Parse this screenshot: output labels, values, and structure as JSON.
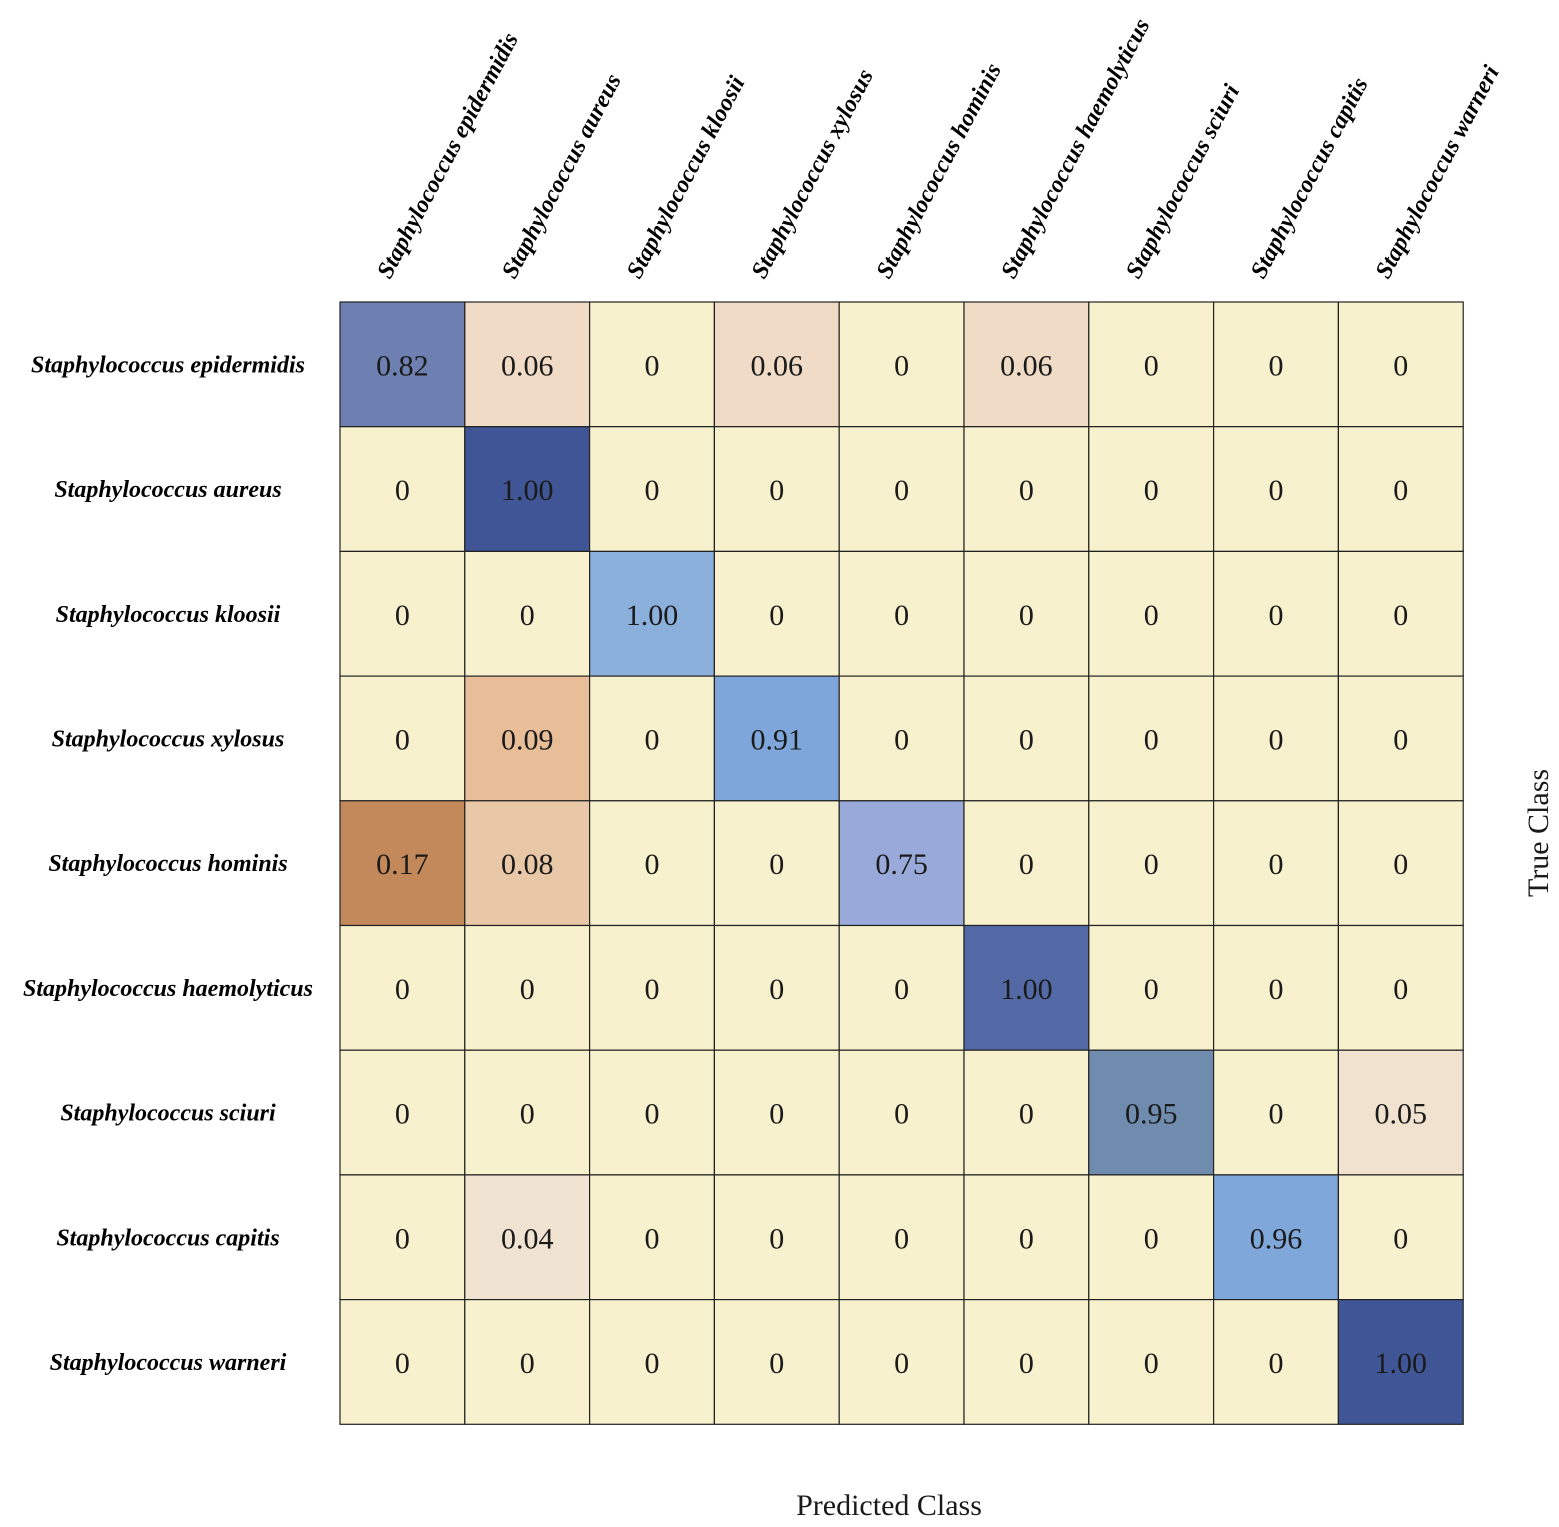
{
  "chart_data": {
    "type": "heatmap",
    "title": "",
    "xlabel": "Predicted Class",
    "ylabel": "True Class",
    "x_categories": [
      "Staphylococcus epidermidis",
      "Staphylococcus aureus",
      "Staphylococcus kloosii",
      "Staphylococcus xylosus",
      "Staphylococcus hominis",
      "Staphylococcus haemolyticus",
      "Staphylococcus sciuri",
      "Staphylococcus capitis",
      "Staphylococcus warneri"
    ],
    "y_categories": [
      "Staphylococcus epidermidis",
      "Staphylococcus aureus",
      "Staphylococcus kloosii",
      "Staphylococcus xylosus",
      "Staphylococcus hominis",
      "Staphylococcus haemolyticus",
      "Staphylococcus sciuri",
      "Staphylococcus capitis",
      "Staphylococcus warneri"
    ],
    "values": [
      [
        "0.82",
        "0.06",
        "0",
        "0.06",
        "0",
        "0.06",
        "0",
        "0",
        "0"
      ],
      [
        "0",
        "1.00",
        "0",
        "0",
        "0",
        "0",
        "0",
        "0",
        "0"
      ],
      [
        "0",
        "0",
        "1.00",
        "0",
        "0",
        "0",
        "0",
        "0",
        "0"
      ],
      [
        "0",
        "0.09",
        "0",
        "0.91",
        "0",
        "0",
        "0",
        "0",
        "0"
      ],
      [
        "0.17",
        "0.08",
        "0",
        "0",
        "0.75",
        "0",
        "0",
        "0",
        "0"
      ],
      [
        "0",
        "0",
        "0",
        "0",
        "0",
        "1.00",
        "0",
        "0",
        "0"
      ],
      [
        "0",
        "0",
        "0",
        "0",
        "0",
        "0",
        "0.95",
        "0",
        "0.05"
      ],
      [
        "0",
        "0.04",
        "0",
        "0",
        "0",
        "0",
        "0",
        "0.96",
        "0"
      ],
      [
        "0",
        "0",
        "0",
        "0",
        "0",
        "0",
        "0",
        "0",
        "1.00"
      ]
    ],
    "colors": {
      "background_cell": "#F8F1CE",
      "grid_line": "#222222",
      "cells": [
        [
          "#6D80B1",
          "#EFDBC6",
          "#F8F1CE",
          "#EFDBC6",
          "#F8F1CE",
          "#EFDBC6",
          "#F8F1CE",
          "#F8F1CE",
          "#F8F1CE"
        ],
        [
          "#F8F1CE",
          "#3F5595",
          "#F8F1CE",
          "#F8F1CE",
          "#F8F1CE",
          "#F8F1CE",
          "#F8F1CE",
          "#F8F1CE",
          "#F8F1CE"
        ],
        [
          "#F8F1CE",
          "#F8F1CE",
          "#8BB0DC",
          "#F8F1CE",
          "#F8F1CE",
          "#F8F1CE",
          "#F8F1CE",
          "#F8F1CE",
          "#F8F1CE"
        ],
        [
          "#F8F1CE",
          "#E8BE98",
          "#F8F1CE",
          "#7EA6DA",
          "#F8F1CE",
          "#F8F1CE",
          "#F8F1CE",
          "#F8F1CE",
          "#F8F1CE"
        ],
        [
          "#C4895A",
          "#E9C8A8",
          "#F8F1CE",
          "#F8F1CE",
          "#99A9DA",
          "#F8F1CE",
          "#F8F1CE",
          "#F8F1CE",
          "#F8F1CE"
        ],
        [
          "#F8F1CE",
          "#F8F1CE",
          "#F8F1CE",
          "#F8F1CE",
          "#F8F1CE",
          "#5369A5",
          "#F8F1CE",
          "#F8F1CE",
          "#F8F1CE"
        ],
        [
          "#F8F1CE",
          "#F8F1CE",
          "#F8F1CE",
          "#F8F1CE",
          "#F8F1CE",
          "#F8F1CE",
          "#6F8BAE",
          "#F8F1CE",
          "#F1E2D0"
        ],
        [
          "#F8F1CE",
          "#F1E3D1",
          "#F8F1CE",
          "#F8F1CE",
          "#F8F1CE",
          "#F8F1CE",
          "#F8F1CE",
          "#7FA7DA",
          "#F8F1CE"
        ],
        [
          "#F8F1CE",
          "#F8F1CE",
          "#F8F1CE",
          "#F8F1CE",
          "#F8F1CE",
          "#F8F1CE",
          "#F8F1CE",
          "#F8F1CE",
          "#3F5595"
        ]
      ]
    }
  }
}
